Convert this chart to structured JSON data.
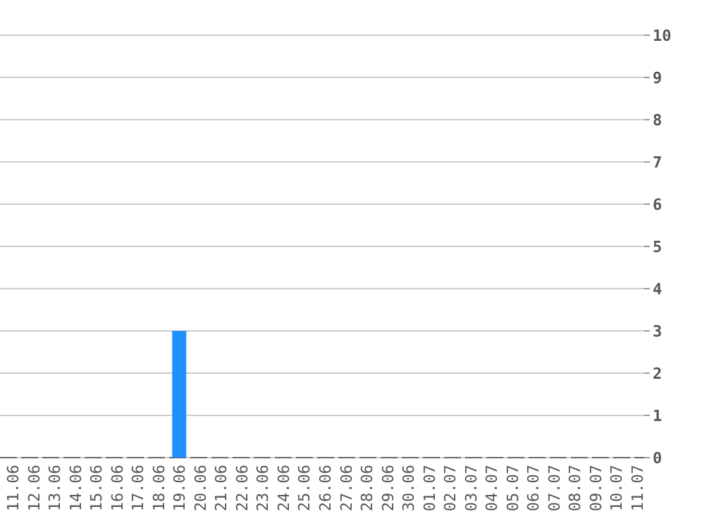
{
  "chart_data": {
    "type": "bar",
    "categories": [
      "11.06",
      "12.06",
      "13.06",
      "14.06",
      "15.06",
      "16.06",
      "17.06",
      "18.06",
      "19.06",
      "20.06",
      "21.06",
      "22.06",
      "23.06",
      "24.06",
      "25.06",
      "26.06",
      "27.06",
      "28.06",
      "29.06",
      "30.06",
      "01.07",
      "02.07",
      "03.07",
      "04.07",
      "05.07",
      "06.07",
      "07.07",
      "08.07",
      "09.07",
      "10.07",
      "11.07"
    ],
    "values": [
      0,
      0,
      0,
      0,
      0,
      0,
      0,
      0,
      3,
      0,
      0,
      0,
      0,
      0,
      0,
      0,
      0,
      0,
      0,
      0,
      0,
      0,
      0,
      0,
      0,
      0,
      0,
      0,
      0,
      0,
      0
    ],
    "color": "#1e90ff",
    "ylim": [
      0,
      10
    ],
    "yticks": [
      0,
      1,
      2,
      3,
      4,
      5,
      6,
      7,
      8,
      9,
      10
    ],
    "grid": "y"
  }
}
